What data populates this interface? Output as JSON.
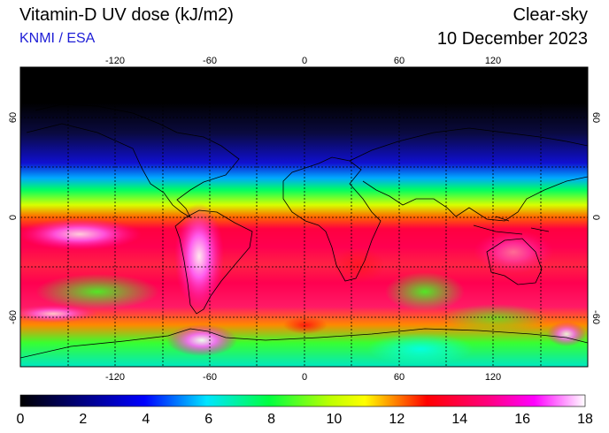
{
  "header": {
    "title": "Vitamin-D UV dose (kJ/m2)",
    "credit": "KNMI / ESA",
    "mode": "Clear-sky",
    "date": "10 December 2023"
  },
  "map": {
    "lon_ticks_top": [
      "-120",
      "-60",
      "0",
      "60",
      "120"
    ],
    "lon_ticks_bottom": [
      "-120",
      "-60",
      "0",
      "60",
      "120"
    ],
    "lat_ticks_left": [
      "60",
      "0",
      "-60"
    ],
    "lat_ticks_right": [
      "60",
      "0",
      "-60"
    ],
    "lon_range": [
      -180,
      180
    ],
    "lat_range": [
      -90,
      90
    ],
    "grid": true,
    "colormap": [
      "#000000",
      "#0000ff",
      "#00e5ff",
      "#00ff33",
      "#ffff00",
      "#ff0000",
      "#ff00ff",
      "#ffffff"
    ]
  },
  "colorbar": {
    "ticks": [
      "0",
      "2",
      "4",
      "6",
      "8",
      "10",
      "12",
      "14",
      "16",
      "18"
    ],
    "min": 0,
    "max": 18
  }
}
